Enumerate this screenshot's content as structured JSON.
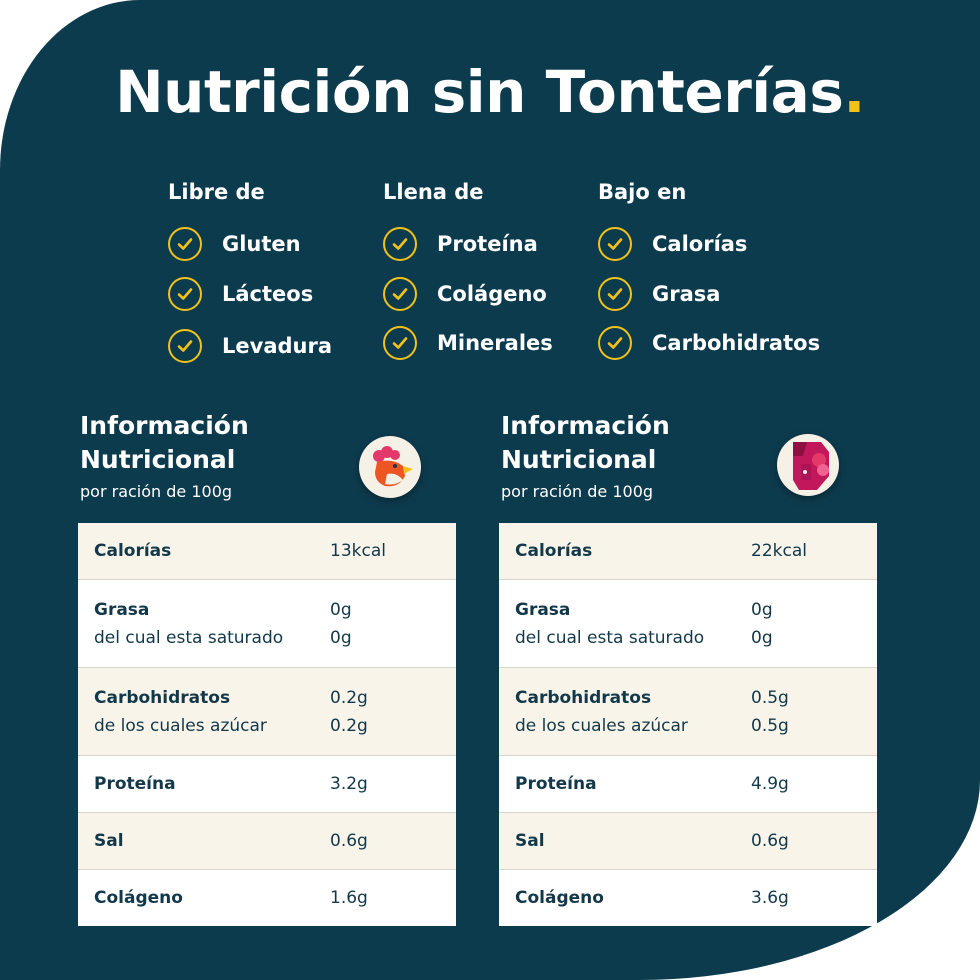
{
  "title": "Nutrición sin Tonterías",
  "title_dot": ".",
  "colors": {
    "background": "#0d3b4e",
    "accent": "#f3c21a",
    "table_alt": "#f8f4ea",
    "text_dark": "#123849"
  },
  "benefits": [
    {
      "heading": "Libre de",
      "items": [
        "Gluten",
        "Lácteos",
        "Levadura"
      ]
    },
    {
      "heading": "Llena de",
      "items": [
        "Proteína",
        "Colágeno",
        "Minerales"
      ]
    },
    {
      "heading": "Bajo en",
      "items": [
        "Calorías",
        "Grasa",
        "Carbohidratos"
      ]
    }
  ],
  "tables": [
    {
      "title_line1": "Información",
      "title_line2": "Nutricional",
      "subtitle": "por ración de 100g",
      "icon": "chicken-icon",
      "rows": [
        {
          "label": "Calorías",
          "value": "13kcal"
        },
        {
          "label": "Grasa",
          "value": "0g",
          "sublabel": "del cual esta saturado",
          "subvalue": "0g"
        },
        {
          "label": "Carbohidratos",
          "value": "0.2g",
          "sublabel": "de los cuales azúcar",
          "subvalue": "0.2g"
        },
        {
          "label": "Proteína",
          "value": "3.2g"
        },
        {
          "label": "Sal",
          "value": "0.6g"
        },
        {
          "label": "Colágeno",
          "value": "1.6g"
        }
      ]
    },
    {
      "title_line1": "Información",
      "title_line2": "Nutricional",
      "subtitle": "por ración de 100g",
      "icon": "cow-icon",
      "rows": [
        {
          "label": "Calorías",
          "value": "22kcal"
        },
        {
          "label": "Grasa",
          "value": "0g",
          "sublabel": "del cual esta saturado",
          "subvalue": "0g"
        },
        {
          "label": "Carbohidratos",
          "value": "0.5g",
          "sublabel": "de los cuales azúcar",
          "subvalue": "0.5g"
        },
        {
          "label": "Proteína",
          "value": "4.9g"
        },
        {
          "label": "Sal",
          "value": "0.6g"
        },
        {
          "label": "Colágeno",
          "value": "3.6g"
        }
      ]
    }
  ]
}
